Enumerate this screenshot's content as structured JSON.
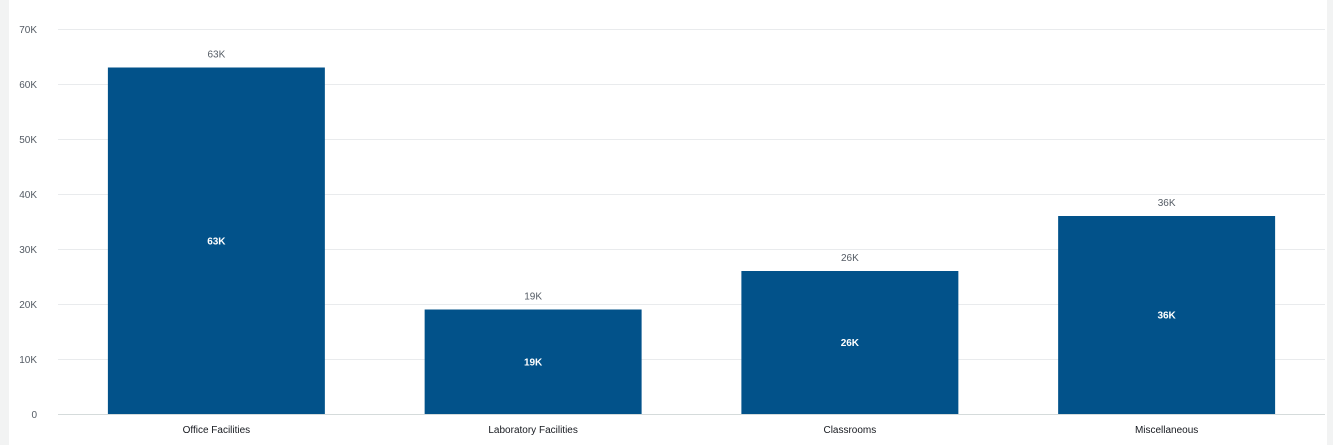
{
  "chart_data": {
    "type": "bar",
    "categories": [
      "Office Facilities",
      "Laboratory Facilities",
      "Classrooms",
      "Miscellaneous"
    ],
    "values": [
      63000,
      19000,
      26000,
      36000
    ],
    "data_labels": [
      "63K",
      "19K",
      "26K",
      "36K"
    ],
    "ylim": [
      0,
      70000
    ],
    "yticks": [
      0,
      10000,
      20000,
      30000,
      40000,
      50000,
      60000,
      70000
    ],
    "ytick_labels": [
      "0",
      "10K",
      "20K",
      "30K",
      "40K",
      "50K",
      "60K",
      "70K"
    ],
    "title": "",
    "xlabel": "",
    "ylabel": "",
    "grid": true,
    "legend": "none",
    "bar_color": "#02528a"
  }
}
